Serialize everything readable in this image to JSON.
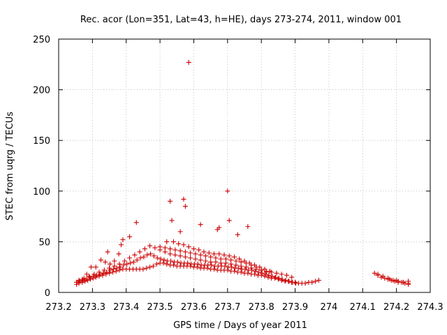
{
  "chart_data": {
    "type": "scatter",
    "title": "Rec. acor (Lon=351, Lat=43, h=HE), days 273-274, 2011, window 001",
    "xlabel": "GPS time / Days of year 2011",
    "ylabel": "STEC from uqrg / TECUs",
    "xlim": [
      273.2,
      274.3
    ],
    "ylim": [
      0,
      250
    ],
    "xticks": [
      "273.2",
      "273.3",
      "273.4",
      "273.5",
      "273.6",
      "273.7",
      "273.8",
      "273.9",
      "274",
      "274.1",
      "274.2",
      "274.3"
    ],
    "yticks": [
      "0",
      "50",
      "100",
      "150",
      "200",
      "250"
    ],
    "grid": true,
    "marker": "+",
    "marker_color": "#cc0000",
    "series": [
      {
        "x": [
          273.253,
          273.26,
          273.27,
          273.278,
          273.286,
          273.294,
          273.302,
          273.31,
          273.32,
          273.33,
          273.34,
          273.35,
          273.36,
          273.37,
          273.38,
          273.39,
          273.4,
          273.41,
          273.42,
          273.43,
          273.44,
          273.45,
          273.46,
          273.47,
          273.48,
          273.49,
          273.5,
          273.51,
          273.52,
          273.53,
          273.54,
          273.55,
          273.56,
          273.57,
          273.58,
          273.59,
          273.6,
          273.61,
          273.62,
          273.63,
          273.64,
          273.65,
          273.66,
          273.67,
          273.68,
          273.69,
          273.7,
          273.71,
          273.72,
          273.73,
          273.74,
          273.75,
          273.76,
          273.77,
          273.78,
          273.79,
          273.8,
          273.81,
          273.82,
          273.83,
          273.84,
          273.85,
          273.86,
          273.87,
          273.88,
          273.89,
          273.9,
          273.91,
          273.92,
          273.93,
          273.94,
          273.95,
          273.96,
          273.97,
          273.253,
          273.262,
          273.272,
          273.282,
          273.292,
          273.302,
          273.312,
          273.322,
          273.332,
          273.342,
          273.352,
          273.362,
          273.372,
          273.382,
          273.392,
          273.402,
          273.412,
          273.422,
          273.432,
          273.442,
          273.452,
          273.462,
          273.472,
          273.482,
          273.492,
          273.502,
          273.512,
          273.522,
          273.532,
          273.542,
          273.552,
          273.562,
          273.572,
          273.582,
          273.592,
          273.602,
          273.612,
          273.622,
          273.632,
          273.642,
          273.652,
          273.662,
          273.672,
          273.682,
          273.692,
          273.702,
          273.712,
          273.722,
          273.732,
          273.742,
          273.752,
          273.762,
          273.772,
          273.782,
          273.792,
          273.802,
          273.812,
          273.822,
          273.832,
          273.842,
          273.852,
          273.862,
          273.872,
          273.882,
          273.892,
          273.902,
          273.26,
          273.275,
          273.29,
          273.305,
          273.32,
          273.335,
          273.35,
          273.365,
          273.38,
          273.395,
          273.41,
          273.425,
          273.44,
          273.455,
          273.47,
          273.485,
          273.5,
          273.515,
          273.53,
          273.545,
          273.56,
          273.575,
          273.59,
          273.605,
          273.62,
          273.635,
          273.65,
          273.665,
          273.68,
          273.695,
          273.71,
          273.725,
          273.74,
          273.755,
          273.77,
          273.785,
          273.8,
          273.815,
          273.83,
          273.845,
          273.86,
          273.875,
          273.89,
          273.5,
          273.515,
          273.53,
          273.545,
          273.56,
          273.575,
          273.59,
          273.605,
          273.62,
          273.635,
          273.65,
          273.665,
          273.68,
          273.695,
          273.71,
          273.725,
          273.74,
          273.755,
          273.77,
          273.785,
          273.8,
          273.815,
          273.54,
          273.555,
          273.57,
          273.585,
          273.6,
          273.615,
          273.63,
          273.645,
          273.66,
          273.675,
          273.69,
          273.705,
          273.72,
          273.735,
          273.75,
          273.765,
          273.78,
          273.795,
          273.81,
          273.825,
          273.26,
          273.27,
          273.283,
          273.296,
          273.31,
          273.325,
          273.338,
          273.352,
          273.365,
          273.378,
          273.39,
          273.52,
          273.53,
          273.535,
          273.56,
          273.57,
          273.575,
          273.585,
          273.62,
          273.67,
          273.675,
          273.7,
          273.705,
          273.73,
          273.76,
          273.43,
          273.41,
          273.385,
          273.345,
          274.135,
          274.145,
          274.155,
          274.165,
          274.175,
          274.185,
          274.195,
          274.205,
          274.215,
          274.225,
          274.235,
          274.145,
          274.16,
          274.175,
          274.19,
          274.205,
          274.22,
          274.235,
          274.18,
          274.2,
          274.22,
          274.235
        ],
        "y": [
          8,
          9,
          10,
          11,
          12,
          13,
          14,
          15,
          16,
          17,
          18,
          19,
          20,
          21,
          22,
          23,
          23,
          23,
          23,
          23,
          23,
          23,
          24,
          25,
          26,
          28,
          29,
          29,
          28,
          27,
          27,
          26,
          26,
          26,
          26,
          26,
          25,
          25,
          24,
          24,
          24,
          23,
          23,
          22,
          22,
          22,
          22,
          21,
          21,
          20,
          20,
          19,
          19,
          18,
          18,
          17,
          17,
          16,
          15,
          14,
          14,
          13,
          12,
          11,
          11,
          10,
          10,
          9,
          9,
          9,
          10,
          10,
          11,
          12,
          10,
          11,
          12,
          13,
          15,
          16,
          17,
          18,
          19,
          20,
          22,
          23,
          24,
          25,
          27,
          28,
          29,
          30,
          32,
          34,
          35,
          37,
          38,
          36,
          34,
          33,
          32,
          31,
          31,
          30,
          30,
          29,
          29,
          29,
          28,
          28,
          28,
          27,
          27,
          27,
          27,
          26,
          26,
          26,
          26,
          25,
          25,
          24,
          24,
          23,
          23,
          22,
          22,
          21,
          20,
          19,
          18,
          17,
          16,
          15,
          14,
          13,
          12,
          11,
          10,
          9,
          12,
          14,
          16,
          18,
          20,
          22,
          24,
          26,
          28,
          31,
          34,
          37,
          40,
          43,
          46,
          44,
          42,
          40,
          38,
          37,
          36,
          35,
          34,
          33,
          32,
          31,
          30,
          30,
          29,
          29,
          28,
          27,
          26,
          25,
          24,
          23,
          22,
          21,
          20,
          19,
          18,
          17,
          15,
          45,
          44,
          43,
          42,
          41,
          40,
          39,
          38,
          37,
          36,
          35,
          34,
          33,
          33,
          32,
          31,
          30,
          29,
          27,
          25,
          22,
          20,
          50,
          48,
          47,
          45,
          43,
          42,
          40,
          39,
          38,
          38,
          37,
          36,
          35,
          33,
          31,
          29,
          27,
          25,
          23,
          21,
          11,
          13,
          18,
          25,
          25,
          32,
          30,
          28,
          31,
          38,
          52,
          50,
          90,
          71,
          60,
          92,
          85,
          227,
          67,
          62,
          64,
          100,
          71,
          57,
          65,
          69,
          55,
          47,
          40,
          19,
          17,
          15,
          14,
          13,
          12,
          11,
          10,
          10,
          9,
          9,
          18,
          16,
          14,
          12,
          11,
          10,
          11,
          13,
          12,
          10,
          8
        ]
      }
    ]
  }
}
